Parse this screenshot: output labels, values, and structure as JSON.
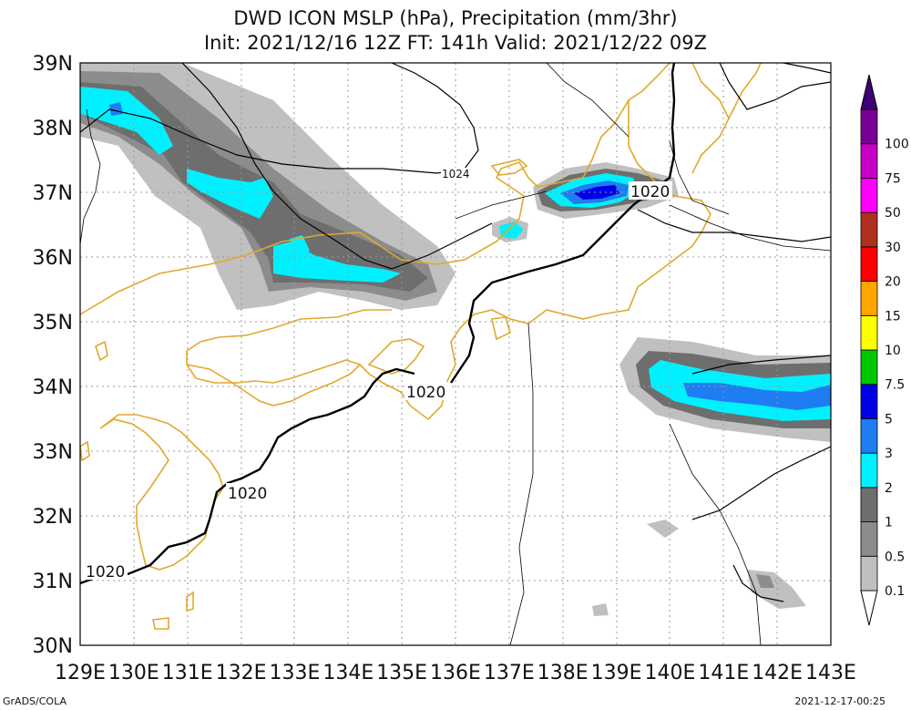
{
  "header": {
    "title_line1": "DWD ICON MSLP (hPa), Precipitation (mm/3hr)",
    "title_line2": "Init: 2021/12/16 12Z  FT: 141h  Valid: 2021/12/22 09Z"
  },
  "axes": {
    "lon_labels": [
      "129E",
      "130E",
      "131E",
      "132E",
      "133E",
      "134E",
      "135E",
      "136E",
      "137E",
      "138E",
      "139E",
      "140E",
      "141E",
      "142E",
      "143E"
    ],
    "lat_labels": [
      "39N",
      "38N",
      "37N",
      "36N",
      "35N",
      "34N",
      "33N",
      "32N",
      "31N",
      "30N"
    ],
    "lon_range": [
      129,
      143
    ],
    "lat_range": [
      30,
      39
    ],
    "grid": "dotted"
  },
  "legend": {
    "labels": [
      "0.1",
      "0.5",
      "1",
      "2",
      "3",
      "5",
      "7.5",
      "10",
      "15",
      "20",
      "30",
      "50",
      "75",
      "100"
    ],
    "colors": [
      "#c0c0c0",
      "#8c8c8c",
      "#6e6e6e",
      "#00f0ff",
      "#1e7df0",
      "#0000e6",
      "#00c800",
      "#ffff00",
      "#ffa500",
      "#ff0000",
      "#b03020",
      "#ff00ff",
      "#c800c8",
      "#780096",
      "#3c0078"
    ]
  },
  "contours": {
    "isobar_labels": [
      "1020",
      "1020",
      "1020",
      "1020",
      "1024"
    ]
  },
  "footer": {
    "left": "GrADS/COLA",
    "right": "2021-12-17-00:25"
  },
  "colors": {
    "coastline": "#dfa92e",
    "isobar": "#000000",
    "border": "#000000"
  }
}
